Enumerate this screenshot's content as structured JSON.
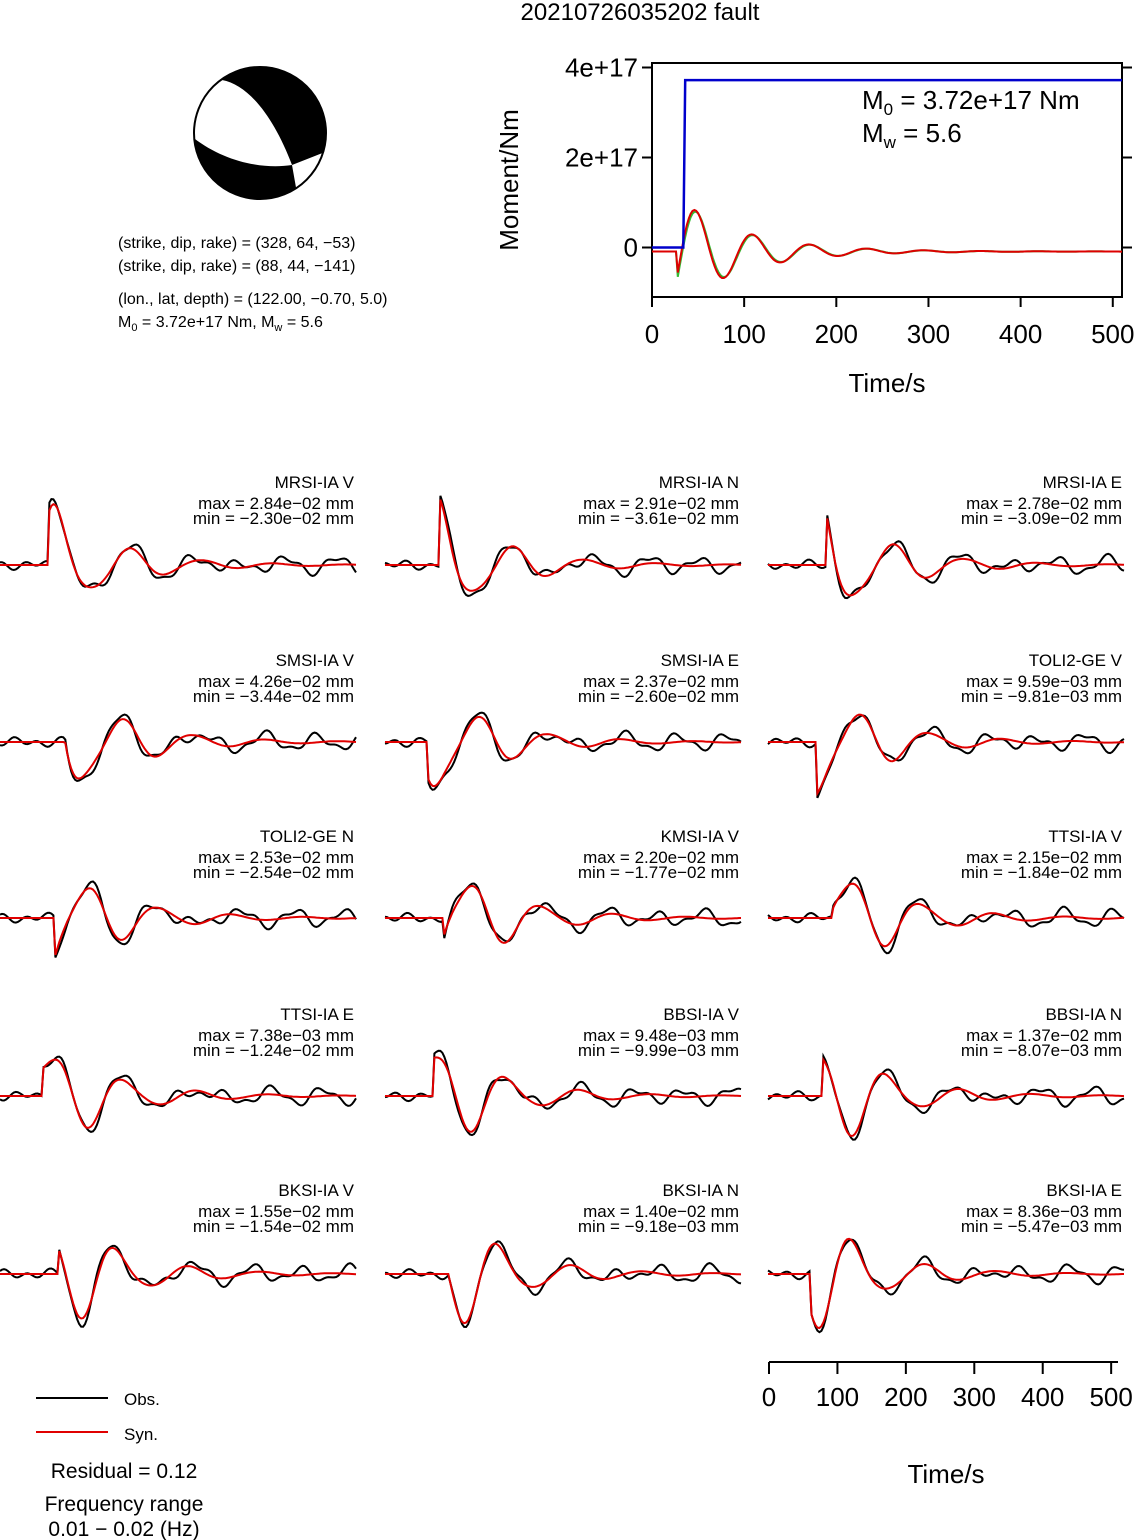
{
  "title": "20210726035202 fault",
  "mechanism": {
    "line1": "(strike, dip, rake) = (328, 64, −53)",
    "line2": "(strike, dip, rake) = (88, 44, −141)",
    "line3": "(lon., lat, depth) = (122.00, −0.70, 5.0)",
    "m0_text": "M",
    "m0_sub": "0",
    "m0_value": " = 3.72e+17 Nm, M",
    "mw_sub": "w",
    "mw_value": " = 5.6"
  },
  "moment_chart": {
    "ylabel": "Moment/Nm",
    "xlabel": "Time/s",
    "yticks": [
      "0",
      "2e+17",
      "4e+17"
    ],
    "xticks": [
      "0",
      "100",
      "200",
      "300",
      "400",
      "500"
    ],
    "annot_m0_main": "M",
    "annot_m0_sub": "0",
    "annot_m0_value": " = 3.72e+17 Nm",
    "annot_mw_main": "M",
    "annot_mw_sub": "w",
    "annot_mw_value": " = 5.6"
  },
  "chart_data": [
    {
      "type": "line",
      "x": [
        0,
        34,
        36,
        510
      ],
      "series": [
        {
          "values": [
            0,
            0,
            3.72e+17,
            3.72e+17
          ],
          "color": "#0000cc"
        }
      ],
      "xlabel": "Time/s",
      "ylabel": "Moment/Nm",
      "xlim": [
        0,
        510
      ],
      "ylim": [
        -1.1e+17,
        4.1e+17
      ]
    },
    {
      "type": "line",
      "x": [
        0,
        100,
        200,
        300,
        400,
        500
      ],
      "xlabel": "Time/s",
      "xlim": [
        0,
        510
      ],
      "traces": [
        {
          "station": "MRSI-IA V",
          "max": "max = 2.84e−02 mm",
          "min": "min = −2.30e−02 mm"
        },
        {
          "station": "MRSI-IA N",
          "max": "max = 2.91e−02 mm",
          "min": "min = −3.61e−02 mm"
        },
        {
          "station": "MRSI-IA E",
          "max": "max = 2.78e−02 mm",
          "min": "min = −3.09e−02 mm"
        },
        {
          "station": "SMSI-IA V",
          "max": "max = 4.26e−02 mm",
          "min": "min = −3.44e−02 mm"
        },
        {
          "station": "SMSI-IA E",
          "max": "max = 2.37e−02 mm",
          "min": "min = −2.60e−02 mm"
        },
        {
          "station": "TOLI2-GE V",
          "max": "max = 9.59e−03 mm",
          "min": "min = −9.81e−03 mm"
        },
        {
          "station": "TOLI2-GE N",
          "max": "max = 2.53e−02 mm",
          "min": "min = −2.54e−02 mm"
        },
        {
          "station": "KMSI-IA V",
          "max": "max = 2.20e−02 mm",
          "min": "min = −1.77e−02 mm"
        },
        {
          "station": "TTSI-IA V",
          "max": "max = 2.15e−02 mm",
          "min": "min = −1.84e−02 mm"
        },
        {
          "station": "TTSI-IA E",
          "max": "max = 7.38e−03 mm",
          "min": "min = −1.24e−02 mm"
        },
        {
          "station": "BBSI-IA V",
          "max": "max = 9.48e−03 mm",
          "min": "min = −9.99e−03 mm"
        },
        {
          "station": "BBSI-IA N",
          "max": "max = 1.37e−02 mm",
          "min": "min = −8.07e−03 mm"
        },
        {
          "station": "BKSI-IA V",
          "max": "max = 1.55e−02 mm",
          "min": "min = −1.54e−02 mm"
        },
        {
          "station": "BKSI-IA N",
          "max": "max = 1.40e−02 mm",
          "min": "min = −9.18e−03 mm"
        },
        {
          "station": "BKSI-IA E",
          "max": "max = 8.36e−03 mm",
          "min": "min = −5.47e−03 mm"
        }
      ]
    }
  ],
  "legend": {
    "obs_label": "Obs.",
    "syn_label": "Syn.",
    "obs_color": "#000000",
    "syn_color": "#e00000"
  },
  "footer": {
    "residual": "Residual = 0.12",
    "freq_label": "Frequency range",
    "freq_value": "0.01 − 0.02 (Hz)"
  },
  "colors": {
    "moment_line": "#0000cc",
    "stf_green": "#33bb33",
    "stf_red": "#dd0000"
  }
}
